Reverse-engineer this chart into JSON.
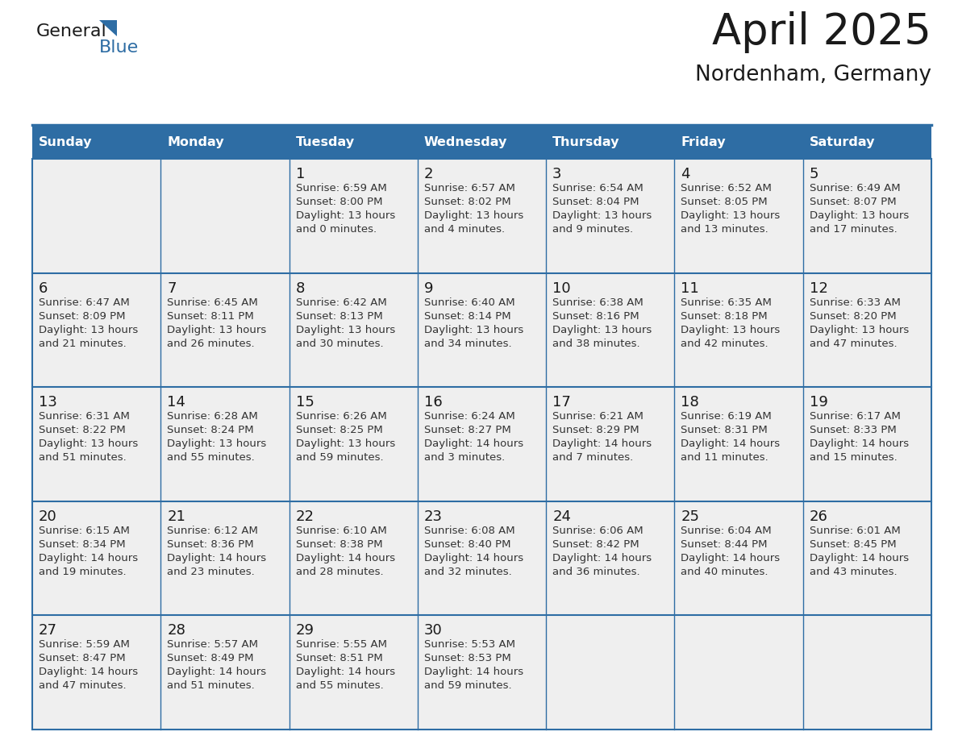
{
  "title": "April 2025",
  "subtitle": "Nordenham, Germany",
  "header_bg_color": "#2E6DA4",
  "header_text_color": "#FFFFFF",
  "cell_bg_color": "#EFEFEF",
  "day_text_color": "#1a1a1a",
  "detail_text_color": "#333333",
  "border_color": "#2E6DA4",
  "days_of_week": [
    "Sunday",
    "Monday",
    "Tuesday",
    "Wednesday",
    "Thursday",
    "Friday",
    "Saturday"
  ],
  "weeks": [
    [
      {
        "date": "",
        "sunrise": "",
        "sunset": "",
        "daylight_h": "",
        "daylight_m": ""
      },
      {
        "date": "",
        "sunrise": "",
        "sunset": "",
        "daylight_h": "",
        "daylight_m": ""
      },
      {
        "date": "1",
        "sunrise": "6:59 AM",
        "sunset": "8:00 PM",
        "daylight_h": "13 hours",
        "daylight_m": "and 0 minutes."
      },
      {
        "date": "2",
        "sunrise": "6:57 AM",
        "sunset": "8:02 PM",
        "daylight_h": "13 hours",
        "daylight_m": "and 4 minutes."
      },
      {
        "date": "3",
        "sunrise": "6:54 AM",
        "sunset": "8:04 PM",
        "daylight_h": "13 hours",
        "daylight_m": "and 9 minutes."
      },
      {
        "date": "4",
        "sunrise": "6:52 AM",
        "sunset": "8:05 PM",
        "daylight_h": "13 hours",
        "daylight_m": "and 13 minutes."
      },
      {
        "date": "5",
        "sunrise": "6:49 AM",
        "sunset": "8:07 PM",
        "daylight_h": "13 hours",
        "daylight_m": "and 17 minutes."
      }
    ],
    [
      {
        "date": "6",
        "sunrise": "6:47 AM",
        "sunset": "8:09 PM",
        "daylight_h": "13 hours",
        "daylight_m": "and 21 minutes."
      },
      {
        "date": "7",
        "sunrise": "6:45 AM",
        "sunset": "8:11 PM",
        "daylight_h": "13 hours",
        "daylight_m": "and 26 minutes."
      },
      {
        "date": "8",
        "sunrise": "6:42 AM",
        "sunset": "8:13 PM",
        "daylight_h": "13 hours",
        "daylight_m": "and 30 minutes."
      },
      {
        "date": "9",
        "sunrise": "6:40 AM",
        "sunset": "8:14 PM",
        "daylight_h": "13 hours",
        "daylight_m": "and 34 minutes."
      },
      {
        "date": "10",
        "sunrise": "6:38 AM",
        "sunset": "8:16 PM",
        "daylight_h": "13 hours",
        "daylight_m": "and 38 minutes."
      },
      {
        "date": "11",
        "sunrise": "6:35 AM",
        "sunset": "8:18 PM",
        "daylight_h": "13 hours",
        "daylight_m": "and 42 minutes."
      },
      {
        "date": "12",
        "sunrise": "6:33 AM",
        "sunset": "8:20 PM",
        "daylight_h": "13 hours",
        "daylight_m": "and 47 minutes."
      }
    ],
    [
      {
        "date": "13",
        "sunrise": "6:31 AM",
        "sunset": "8:22 PM",
        "daylight_h": "13 hours",
        "daylight_m": "and 51 minutes."
      },
      {
        "date": "14",
        "sunrise": "6:28 AM",
        "sunset": "8:24 PM",
        "daylight_h": "13 hours",
        "daylight_m": "and 55 minutes."
      },
      {
        "date": "15",
        "sunrise": "6:26 AM",
        "sunset": "8:25 PM",
        "daylight_h": "13 hours",
        "daylight_m": "and 59 minutes."
      },
      {
        "date": "16",
        "sunrise": "6:24 AM",
        "sunset": "8:27 PM",
        "daylight_h": "14 hours",
        "daylight_m": "and 3 minutes."
      },
      {
        "date": "17",
        "sunrise": "6:21 AM",
        "sunset": "8:29 PM",
        "daylight_h": "14 hours",
        "daylight_m": "and 7 minutes."
      },
      {
        "date": "18",
        "sunrise": "6:19 AM",
        "sunset": "8:31 PM",
        "daylight_h": "14 hours",
        "daylight_m": "and 11 minutes."
      },
      {
        "date": "19",
        "sunrise": "6:17 AM",
        "sunset": "8:33 PM",
        "daylight_h": "14 hours",
        "daylight_m": "and 15 minutes."
      }
    ],
    [
      {
        "date": "20",
        "sunrise": "6:15 AM",
        "sunset": "8:34 PM",
        "daylight_h": "14 hours",
        "daylight_m": "and 19 minutes."
      },
      {
        "date": "21",
        "sunrise": "6:12 AM",
        "sunset": "8:36 PM",
        "daylight_h": "14 hours",
        "daylight_m": "and 23 minutes."
      },
      {
        "date": "22",
        "sunrise": "6:10 AM",
        "sunset": "8:38 PM",
        "daylight_h": "14 hours",
        "daylight_m": "and 28 minutes."
      },
      {
        "date": "23",
        "sunrise": "6:08 AM",
        "sunset": "8:40 PM",
        "daylight_h": "14 hours",
        "daylight_m": "and 32 minutes."
      },
      {
        "date": "24",
        "sunrise": "6:06 AM",
        "sunset": "8:42 PM",
        "daylight_h": "14 hours",
        "daylight_m": "and 36 minutes."
      },
      {
        "date": "25",
        "sunrise": "6:04 AM",
        "sunset": "8:44 PM",
        "daylight_h": "14 hours",
        "daylight_m": "and 40 minutes."
      },
      {
        "date": "26",
        "sunrise": "6:01 AM",
        "sunset": "8:45 PM",
        "daylight_h": "14 hours",
        "daylight_m": "and 43 minutes."
      }
    ],
    [
      {
        "date": "27",
        "sunrise": "5:59 AM",
        "sunset": "8:47 PM",
        "daylight_h": "14 hours",
        "daylight_m": "and 47 minutes."
      },
      {
        "date": "28",
        "sunrise": "5:57 AM",
        "sunset": "8:49 PM",
        "daylight_h": "14 hours",
        "daylight_m": "and 51 minutes."
      },
      {
        "date": "29",
        "sunrise": "5:55 AM",
        "sunset": "8:51 PM",
        "daylight_h": "14 hours",
        "daylight_m": "and 55 minutes."
      },
      {
        "date": "30",
        "sunrise": "5:53 AM",
        "sunset": "8:53 PM",
        "daylight_h": "14 hours",
        "daylight_m": "and 59 minutes."
      },
      {
        "date": "",
        "sunrise": "",
        "sunset": "",
        "daylight_h": "",
        "daylight_m": ""
      },
      {
        "date": "",
        "sunrise": "",
        "sunset": "",
        "daylight_h": "",
        "daylight_m": ""
      },
      {
        "date": "",
        "sunrise": "",
        "sunset": "",
        "daylight_h": "",
        "daylight_m": ""
      }
    ]
  ],
  "logo_text_general": "General",
  "logo_text_blue": "Blue",
  "logo_color_general": "#1a1a1a",
  "logo_color_blue": "#2E6DA4"
}
